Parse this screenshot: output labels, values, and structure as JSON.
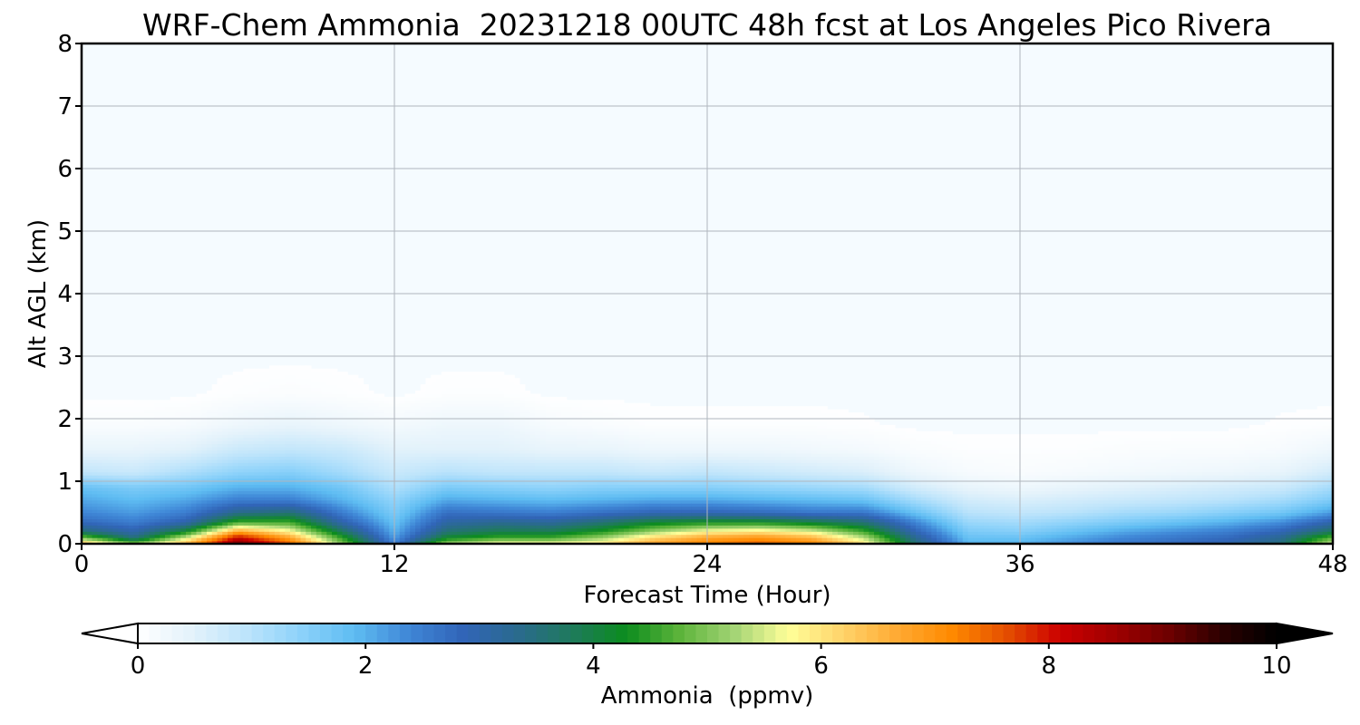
{
  "chart_data": {
    "type": "heatmap",
    "title": "WRF-Chem Ammonia  20231218 00UTC 48h fcst at Los Angeles Pico Rivera",
    "xlabel": "Forecast Time (Hour)",
    "ylabel": "Alt AGL (km)",
    "xlim": [
      0,
      48
    ],
    "ylim": [
      0,
      8
    ],
    "x_ticks": [
      "0",
      "12",
      "24",
      "36",
      "48"
    ],
    "y_ticks": [
      "0",
      "1",
      "2",
      "3",
      "4",
      "5",
      "6",
      "7",
      "8"
    ],
    "grid": true,
    "colorbar": {
      "label": "Ammonia  (ppmv)",
      "range": [
        0,
        10
      ],
      "ticks": [
        "0",
        "2",
        "4",
        "6",
        "8",
        "10"
      ],
      "extend": "both",
      "colors": [
        "#ffffff",
        "#e3f2fb",
        "#bde4fb",
        "#8dd2fa",
        "#5ebcf2",
        "#3f86d6",
        "#3165b8",
        "#2a6a8e",
        "#1f7a5c",
        "#0c8c1e",
        "#5db43b",
        "#a3d475",
        "#ffff99",
        "#ffd36a",
        "#ffaa33",
        "#ff8a00",
        "#e55000",
        "#cc0000",
        "#a00000",
        "#6e0000",
        "#2a0000",
        "#000000"
      ]
    },
    "height_profile_km": [
      0,
      0.1,
      0.2,
      0.35,
      0.5,
      0.7,
      0.9,
      1.15,
      1.5,
      1.9,
      2.4,
      3
    ],
    "time_hours": [
      0,
      2,
      4,
      6,
      8,
      10,
      12,
      14,
      16,
      18,
      20,
      22,
      24,
      26,
      28,
      30,
      32,
      34,
      36,
      38,
      40,
      42,
      44,
      46,
      48
    ],
    "values_ppmv": [
      [
        6.5,
        5.0,
        6.5,
        9.0,
        7.5,
        5.0,
        2.5,
        5.2,
        5.8,
        5.8,
        6.0,
        6.8,
        7.2,
        7.5,
        7.2,
        6.0,
        3.6,
        2.0,
        2.0,
        2.3,
        2.6,
        2.8,
        3.0,
        3.5,
        5.5
      ],
      [
        5.0,
        3.5,
        5.5,
        8.2,
        6.8,
        4.5,
        2.2,
        4.2,
        4.6,
        4.6,
        5.2,
        6.2,
        6.8,
        7.0,
        6.6,
        5.4,
        3.3,
        1.8,
        1.8,
        2.1,
        2.4,
        2.6,
        2.8,
        3.3,
        4.8
      ],
      [
        3.6,
        3.0,
        4.2,
        6.8,
        5.8,
        3.8,
        2.0,
        3.6,
        3.9,
        3.9,
        4.4,
        5.2,
        5.8,
        6.0,
        5.6,
        4.6,
        2.9,
        1.6,
        1.5,
        1.8,
        2.1,
        2.3,
        2.5,
        2.9,
        3.8
      ],
      [
        2.8,
        2.5,
        3.0,
        4.6,
        4.6,
        3.0,
        1.8,
        3.1,
        3.3,
        3.2,
        3.6,
        4.1,
        4.3,
        4.3,
        4.0,
        3.6,
        2.4,
        1.3,
        1.2,
        1.4,
        1.6,
        1.8,
        2.0,
        2.3,
        3.0
      ],
      [
        2.4,
        2.2,
        2.5,
        3.4,
        3.6,
        2.5,
        1.6,
        2.7,
        2.6,
        2.5,
        2.7,
        2.9,
        2.9,
        2.8,
        2.6,
        2.6,
        1.8,
        1.0,
        0.9,
        1.0,
        1.2,
        1.3,
        1.5,
        1.7,
        2.2
      ],
      [
        2.1,
        1.9,
        2.1,
        2.5,
        2.5,
        2.0,
        1.4,
        2.1,
        2.0,
        1.9,
        2.0,
        2.1,
        2.1,
        2.0,
        1.9,
        1.8,
        1.2,
        0.7,
        0.6,
        0.7,
        0.8,
        0.9,
        1.0,
        1.2,
        1.6
      ],
      [
        1.8,
        1.6,
        1.7,
        2.0,
        2.0,
        1.7,
        1.1,
        1.6,
        1.5,
        1.4,
        1.5,
        1.5,
        1.5,
        1.4,
        1.3,
        1.2,
        0.7,
        0.4,
        0.3,
        0.4,
        0.5,
        0.6,
        0.7,
        0.8,
        1.2
      ],
      [
        0.9,
        0.8,
        1.1,
        1.4,
        1.5,
        1.2,
        0.8,
        1.0,
        0.9,
        0.9,
        0.9,
        0.8,
        0.9,
        0.8,
        0.7,
        0.6,
        0.3,
        0.15,
        0.1,
        0.15,
        0.2,
        0.25,
        0.3,
        0.4,
        0.7
      ],
      [
        0.4,
        0.4,
        0.5,
        0.8,
        0.9,
        0.8,
        0.5,
        0.5,
        0.5,
        0.4,
        0.4,
        0.3,
        0.3,
        0.3,
        0.25,
        0.2,
        0.1,
        0.05,
        0.05,
        0.05,
        0.08,
        0.1,
        0.1,
        0.15,
        0.3
      ],
      [
        0.1,
        0.1,
        0.15,
        0.3,
        0.4,
        0.3,
        0.2,
        0.3,
        0.3,
        0.15,
        0.1,
        0.05,
        0.05,
        0.05,
        0.05,
        0.03,
        0,
        0,
        0,
        0,
        0,
        0,
        0,
        0.03,
        0.05
      ],
      [
        0,
        0,
        0,
        0.05,
        0.08,
        0.05,
        0,
        0.05,
        0.05,
        0,
        0,
        0,
        0,
        0,
        0,
        0,
        0,
        0,
        0,
        0,
        0,
        0,
        0,
        0,
        0
      ],
      [
        0,
        0,
        0,
        0,
        0,
        0,
        0,
        0,
        0,
        0,
        0,
        0,
        0,
        0,
        0,
        0,
        0,
        0,
        0,
        0,
        0,
        0,
        0,
        0,
        0
      ]
    ],
    "background_color": "#f5fbff",
    "grid_color": "#b0b6bd"
  }
}
